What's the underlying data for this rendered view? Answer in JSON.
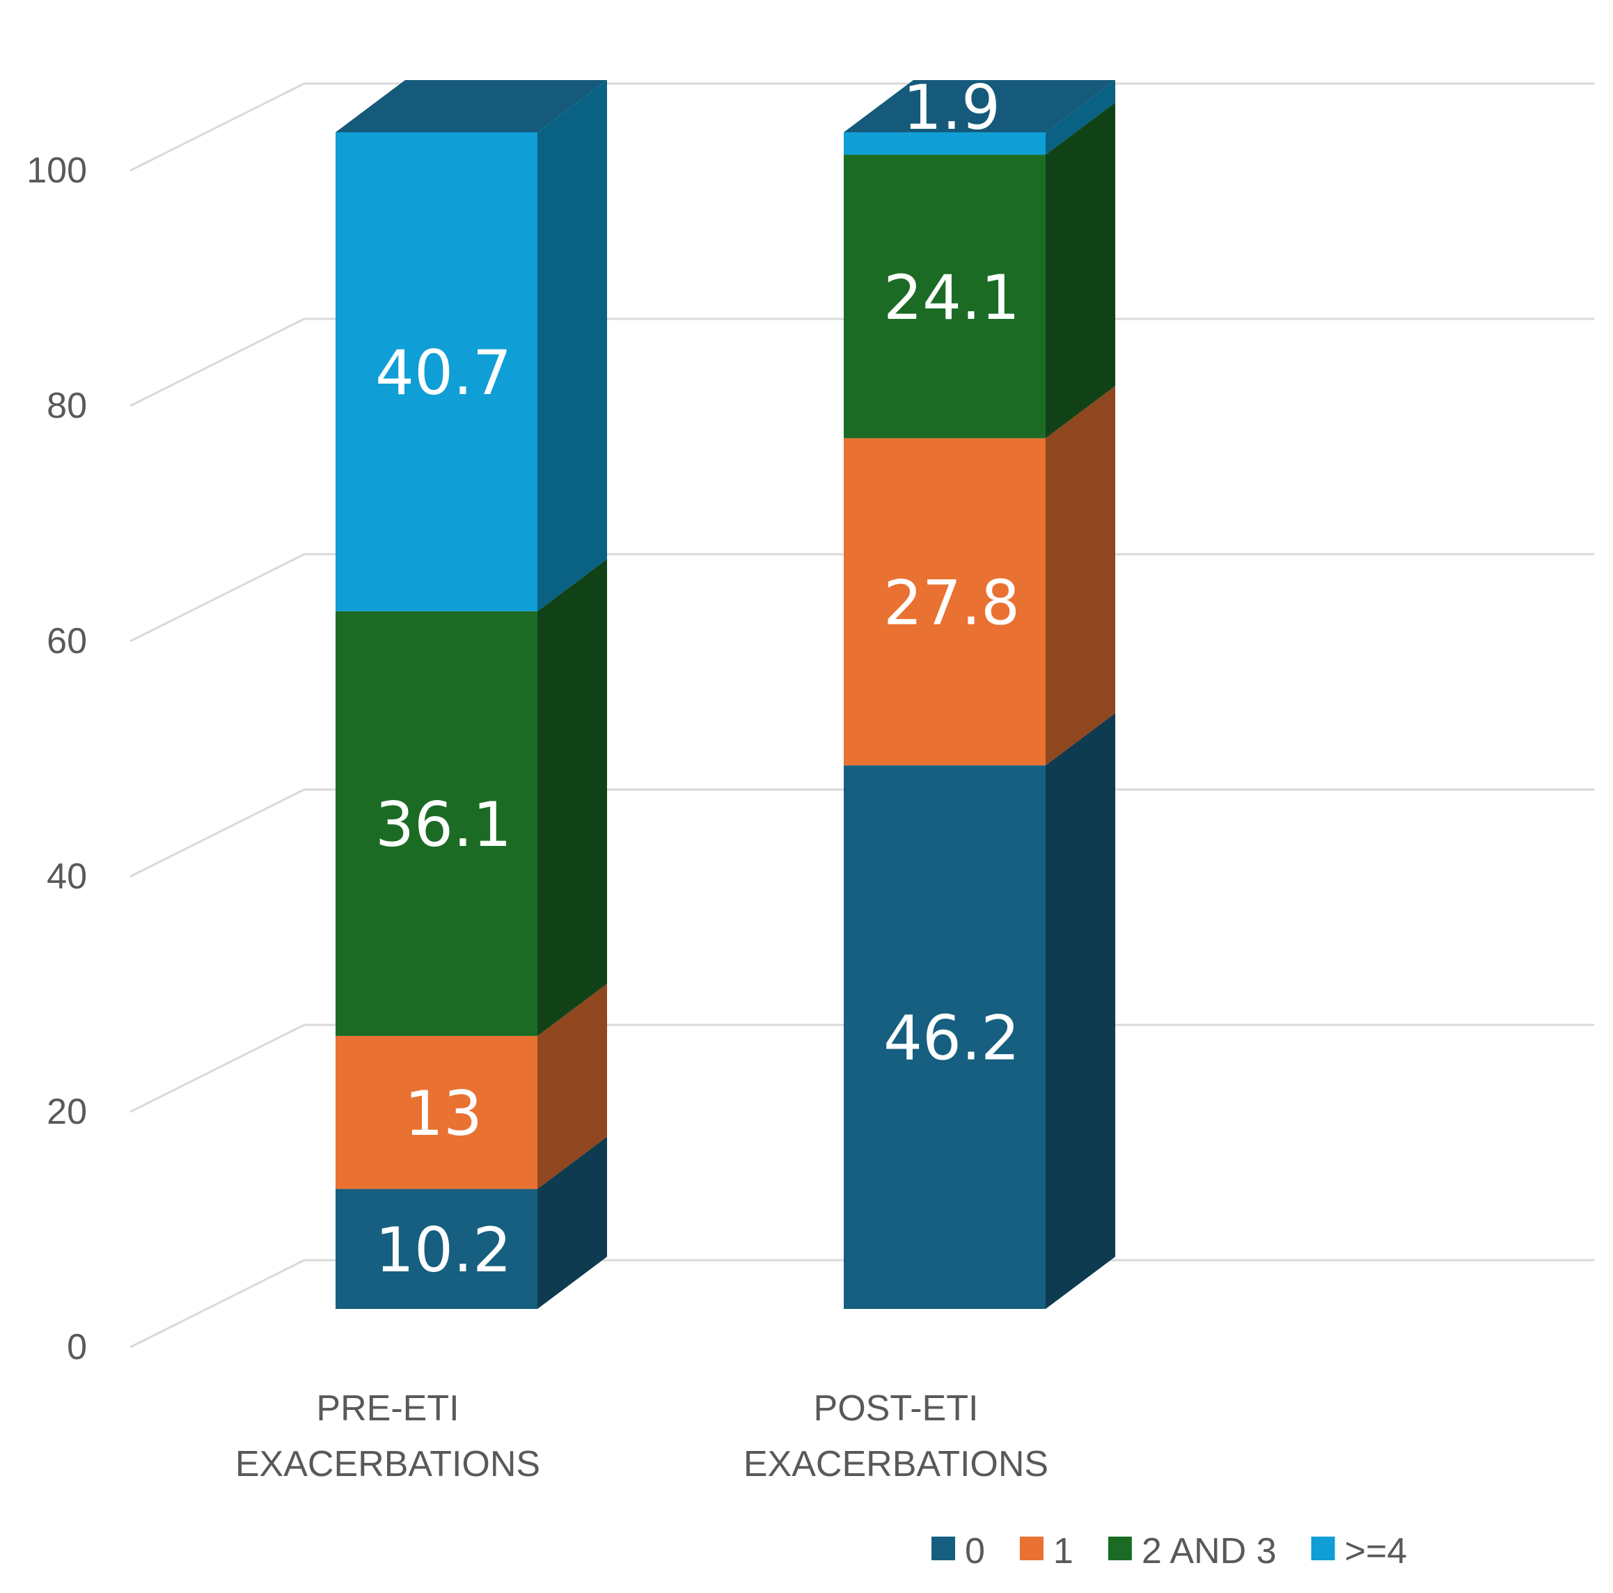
{
  "chart_data": {
    "type": "bar",
    "stacked": true,
    "style": "3d",
    "title": "",
    "xlabel": "",
    "ylabel": "",
    "ylim": [
      0,
      100
    ],
    "yticks": [
      0,
      20,
      40,
      60,
      80,
      100
    ],
    "grid": true,
    "legend_position": "bottom-right",
    "categories": [
      [
        "PRE-ETI",
        "EXACERBATIONS"
      ],
      [
        "POST-ETI",
        "EXACERBATIONS"
      ]
    ],
    "series": [
      {
        "name": "0",
        "color": "#165F80",
        "values": [
          10.2,
          46.2
        ],
        "labels": [
          "10.2",
          "46.2"
        ]
      },
      {
        "name": "1",
        "color": "#E97132",
        "values": [
          13,
          27.8
        ],
        "labels": [
          "13",
          "27.8"
        ]
      },
      {
        "name": "2 AND 3",
        "color": "#1B6B25",
        "values": [
          36.1,
          24.1
        ],
        "labels": [
          "36.1",
          "24.1"
        ]
      },
      {
        "name": ">=4",
        "color": "#0F9ED5",
        "values": [
          40.7,
          1.9
        ],
        "labels": [
          "40.7",
          "1.9"
        ]
      }
    ]
  }
}
